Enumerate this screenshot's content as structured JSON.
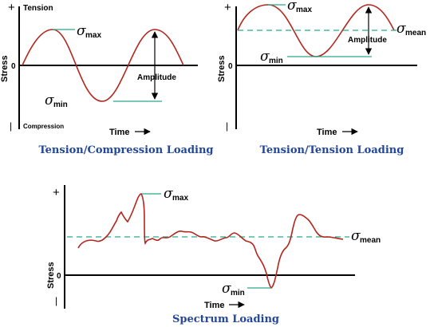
{
  "panels": {
    "tension_compression": {
      "tension_label": "Tension",
      "compression_label": "Compression",
      "stress_label": "Stress",
      "zero_label": "0",
      "plus_sign": "+",
      "minus_sign": "|",
      "time_label": "Time",
      "sigma": "σ",
      "max_sub": "max",
      "min_sub": "min",
      "amplitude_label": "Amplitude",
      "caption": "Tension/Compression Loading"
    },
    "tension_tension": {
      "stress_label": "Stress",
      "zero_label": "0",
      "plus_sign": "+",
      "minus_sign": "|",
      "time_label": "Time",
      "sigma": "σ",
      "max_sub": "max",
      "min_sub": "min",
      "mean_sub": "mean",
      "amplitude_label": "Amplitude",
      "caption": "Tension/Tension Loading"
    },
    "spectrum": {
      "stress_label": "Stress",
      "zero_label": "0",
      "plus_sign": "+",
      "minus_sign": "|",
      "time_label": "Time",
      "sigma": "σ",
      "max_sub": "max",
      "min_sub": "min",
      "mean_sub": "mean",
      "caption": "Spectrum Loading"
    }
  },
  "colors": {
    "wave": "#b3261e",
    "guide": "#2ea88a",
    "caption": "#23479b"
  },
  "icons": {
    "time_arrow": "right-arrow-icon",
    "amplitude_arrow": "double-headed-arrow-icon"
  }
}
